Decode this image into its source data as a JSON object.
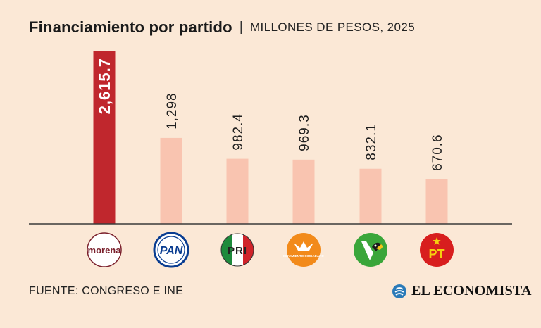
{
  "header": {
    "title": "Financiamiento por partido",
    "separator": "|",
    "subtitle": "MILLONES DE PESOS, 2025"
  },
  "footer": {
    "source": "FUENTE: CONGRESO E INE",
    "brand": "EL ECONOMISTA"
  },
  "colors": {
    "highlight_bar": "#c0272d",
    "regular_bar": "#f9c4b0",
    "baseline": "#3a3a3a"
  },
  "parties": [
    {
      "logo": "morena-logo",
      "logo_text": "morena"
    },
    {
      "logo": "pan-logo",
      "logo_text": "PAN"
    },
    {
      "logo": "pri-logo",
      "logo_text": "PRI"
    },
    {
      "logo": "mc-logo",
      "logo_text": "MOVIMIENTO CIUDADANO"
    },
    {
      "logo": "pvem-logo",
      "logo_text": ""
    },
    {
      "logo": "pt-logo",
      "logo_text": "PT"
    }
  ],
  "chart_data": {
    "type": "bar",
    "title": "Financiamiento por partido",
    "subtitle": "MILLONES DE PESOS, 2025",
    "xlabel": "",
    "ylabel": "",
    "categories": [
      "morena",
      "PAN",
      "PRI",
      "Movimiento Ciudadano",
      "PVEM",
      "PT"
    ],
    "values": [
      2615.7,
      1298,
      982.4,
      969.3,
      832.1,
      670.6
    ],
    "labels": [
      "2,615.7",
      "1,298",
      "982.4",
      "969.3",
      "832.1",
      "670.6"
    ],
    "highlight_index": 0,
    "ylim": [
      0,
      2615.7
    ],
    "grid": false
  }
}
